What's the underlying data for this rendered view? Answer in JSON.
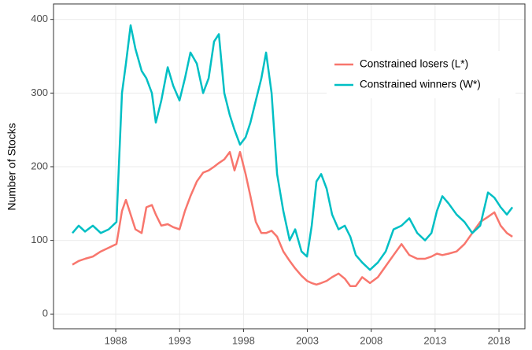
{
  "chart_data": {
    "type": "line",
    "y_label": "Number of Stocks",
    "xlim": [
      1983.13,
      2020.03
    ],
    "ylim": [
      -20,
      421
    ],
    "xticks": [
      1988,
      1993,
      1998,
      2003,
      2008,
      2013,
      2018
    ],
    "yticks": [
      0,
      100,
      200,
      300,
      400
    ],
    "grid": true,
    "legend_position": "top-right",
    "x": [
      1984.61,
      1985.1,
      1985.6,
      1986.21,
      1986.83,
      1987.45,
      1988.06,
      1988.49,
      1988.8,
      1989.17,
      1989.54,
      1990.03,
      1990.4,
      1990.83,
      1991.14,
      1991.57,
      1992.07,
      1992.5,
      1992.99,
      1993.42,
      1993.85,
      1994.35,
      1994.84,
      1995.27,
      1995.7,
      1996.07,
      1996.5,
      1996.93,
      1997.3,
      1997.73,
      1998.17,
      1998.54,
      1998.97,
      1999.4,
      1999.77,
      2000.2,
      2000.63,
      2001.12,
      2001.62,
      2002.05,
      2002.54,
      2002.97,
      2003.34,
      2003.71,
      2004.08,
      2004.51,
      2004.94,
      2005.44,
      2005.93,
      2006.36,
      2006.79,
      2007.29,
      2007.9,
      2008.52,
      2009.13,
      2009.75,
      2010.37,
      2010.98,
      2011.6,
      2012.21,
      2012.71,
      2013.14,
      2013.57,
      2014.06,
      2014.68,
      2015.3,
      2015.91,
      2016.53,
      2017.14,
      2017.64,
      2018.13,
      2018.62,
      2019.05
    ],
    "series": [
      {
        "name": "Constrained losers (L*)",
        "color": "#F8766D",
        "values": [
          67,
          72,
          75,
          78,
          85,
          90,
          95,
          140,
          155,
          135,
          115,
          110,
          145,
          148,
          135,
          120,
          122,
          118,
          115,
          140,
          160,
          180,
          192,
          195,
          200,
          205,
          210,
          220,
          195,
          220,
          190,
          160,
          125,
          110,
          110,
          113,
          105,
          85,
          72,
          62,
          52,
          45,
          42,
          40,
          42,
          45,
          50,
          55,
          48,
          38,
          38,
          50,
          42,
          50,
          65,
          80,
          95,
          80,
          75,
          75,
          78,
          82,
          80,
          82,
          85,
          95,
          110,
          125,
          132,
          138,
          120,
          110,
          105
        ]
      },
      {
        "name": "Constrained winners (W*)",
        "color": "#00BFC4",
        "values": [
          110,
          120,
          112,
          120,
          110,
          115,
          125,
          300,
          340,
          392,
          360,
          330,
          320,
          300,
          260,
          290,
          335,
          310,
          290,
          320,
          355,
          340,
          300,
          320,
          370,
          380,
          300,
          270,
          250,
          230,
          240,
          260,
          290,
          320,
          355,
          300,
          190,
          140,
          100,
          115,
          85,
          78,
          120,
          180,
          190,
          170,
          135,
          115,
          120,
          105,
          80,
          70,
          60,
          70,
          85,
          115,
          120,
          130,
          110,
          100,
          110,
          140,
          160,
          150,
          135,
          125,
          110,
          120,
          165,
          158,
          145,
          135,
          145
        ]
      }
    ]
  }
}
